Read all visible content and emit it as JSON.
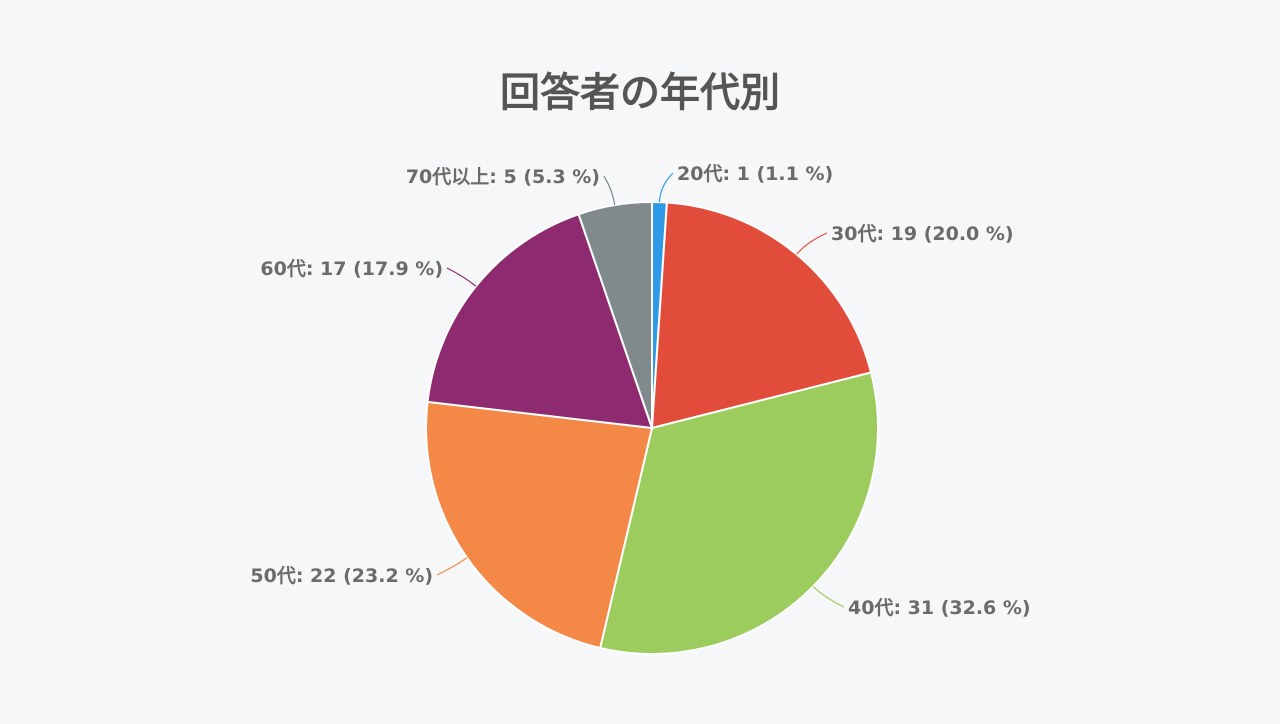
{
  "chart_data": {
    "type": "pie",
    "title": "回答者の年代別",
    "slices": [
      {
        "name": "20代",
        "value": 1,
        "percent": 1.1,
        "color": "#2f9be8",
        "label": "20代: 1 (1.1 %)"
      },
      {
        "name": "30代",
        "value": 19,
        "percent": 20.0,
        "color": "#e24c3b",
        "label": "30代: 19 (20.0 %)"
      },
      {
        "name": "40代",
        "value": 31,
        "percent": 32.6,
        "color": "#9ccc5e",
        "label": "40代: 31 (32.6 %)"
      },
      {
        "name": "50代",
        "value": 22,
        "percent": 23.2,
        "color": "#f48847",
        "label": "50代: 22 (23.2 %)"
      },
      {
        "name": "60代",
        "value": 17,
        "percent": 17.9,
        "color": "#8e2a6f",
        "label": "60代: 17 (17.9 %)"
      },
      {
        "name": "70代以上",
        "value": 5,
        "percent": 5.3,
        "color": "#808a8c",
        "label": "70代以上: 5 (5.3 %)"
      }
    ],
    "start_angle": "top",
    "direction": "clockwise",
    "legend": "none"
  },
  "colors": {
    "background": "#f5f7f9",
    "title": "#555555",
    "label": "#6b6b6b"
  }
}
